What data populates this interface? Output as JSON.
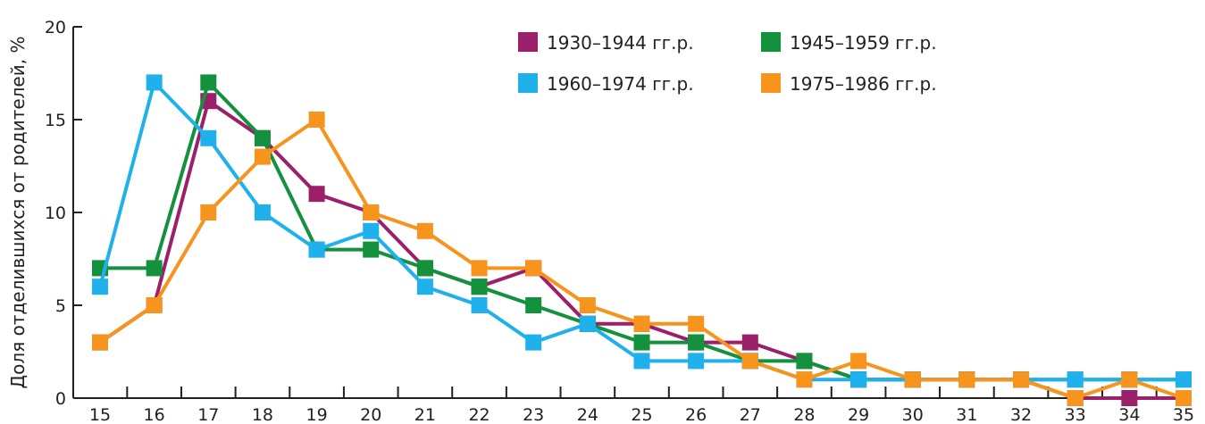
{
  "chart_data": {
    "type": "line",
    "title": "",
    "xlabel": "",
    "ylabel": "Доля отделившихся  от родителей, %",
    "x": [
      15,
      16,
      17,
      18,
      19,
      20,
      21,
      22,
      23,
      24,
      25,
      26,
      27,
      28,
      29,
      30,
      31,
      32,
      33,
      34,
      35
    ],
    "ylim": [
      0,
      20
    ],
    "yticks": [
      0,
      5,
      10,
      15,
      20
    ],
    "grid": false,
    "legend": "top-right",
    "series": [
      {
        "name": "1930–1944 гг.р.",
        "color": "#9c1f6a",
        "values": [
          3,
          5,
          16,
          14,
          11,
          10,
          7,
          6,
          7,
          4,
          4,
          3,
          3,
          2,
          1,
          1,
          1,
          1,
          0,
          0,
          0
        ]
      },
      {
        "name": "1945–1959 гг.р.",
        "color": "#14913d",
        "values": [
          7,
          7,
          17,
          14,
          8,
          8,
          7,
          6,
          5,
          4,
          3,
          3,
          2,
          2,
          1,
          1,
          1,
          1,
          1,
          1,
          1
        ]
      },
      {
        "name": "1960–1974 гг.р.",
        "color": "#1fb1ec",
        "values": [
          6,
          17,
          14,
          10,
          8,
          9,
          6,
          5,
          3,
          4,
          2,
          2,
          2,
          1,
          1,
          1,
          1,
          1,
          1,
          1,
          1
        ]
      },
      {
        "name": "1975–1986 гг.р.",
        "color": "#f7941d",
        "values": [
          3,
          5,
          10,
          13,
          15,
          10,
          9,
          7,
          7,
          5,
          4,
          4,
          2,
          1,
          2,
          1,
          1,
          1,
          0,
          1,
          0
        ]
      }
    ]
  }
}
